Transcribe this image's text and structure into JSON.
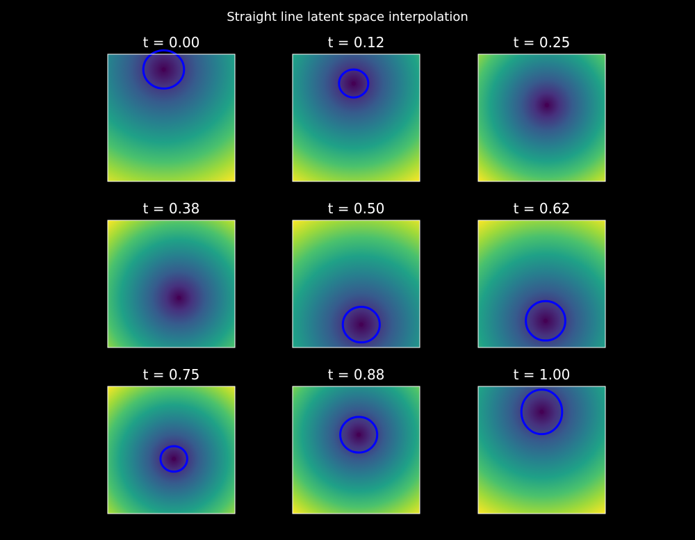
{
  "title": "Straight line latent space interpolation",
  "colors": {
    "background": "#000000",
    "text": "#ffffff",
    "frame": "#ffffff",
    "contour_ring": "#0000ff"
  },
  "chart_data": {
    "type": "heatmap",
    "title": "Straight line latent space interpolation",
    "colormap": "viridis",
    "axes_visible": false,
    "grid": false,
    "panels": [
      {
        "label": "t = 0.00",
        "t": 0.0,
        "minimum": {
          "x": 0.44,
          "y": 0.12
        },
        "ring": {
          "rx": 0.16,
          "ry": 0.15
        }
      },
      {
        "label": "t = 0.12",
        "t": 0.12,
        "minimum": {
          "x": 0.48,
          "y": 0.23
        },
        "ring": {
          "rx": 0.115,
          "ry": 0.11
        }
      },
      {
        "label": "t = 0.25",
        "t": 0.25,
        "minimum": {
          "x": 0.54,
          "y": 0.4
        },
        "ring": null
      },
      {
        "label": "t = 0.38",
        "t": 0.38,
        "minimum": {
          "x": 0.56,
          "y": 0.61
        },
        "ring": null
      },
      {
        "label": "t = 0.50",
        "t": 0.5,
        "minimum": {
          "x": 0.54,
          "y": 0.82
        },
        "ring": {
          "rx": 0.145,
          "ry": 0.14
        }
      },
      {
        "label": "t = 0.62",
        "t": 0.62,
        "minimum": {
          "x": 0.53,
          "y": 0.79
        },
        "ring": {
          "rx": 0.155,
          "ry": 0.155
        }
      },
      {
        "label": "t = 0.75",
        "t": 0.75,
        "minimum": {
          "x": 0.52,
          "y": 0.57
        },
        "ring": {
          "rx": 0.105,
          "ry": 0.1
        }
      },
      {
        "label": "t = 0.88",
        "t": 0.88,
        "minimum": {
          "x": 0.52,
          "y": 0.38
        },
        "ring": {
          "rx": 0.145,
          "ry": 0.14
        }
      },
      {
        "label": "t = 1.00",
        "t": 1.0,
        "minimum": {
          "x": 0.5,
          "y": 0.2
        },
        "ring": {
          "rx": 0.16,
          "ry": 0.175
        }
      }
    ]
  }
}
